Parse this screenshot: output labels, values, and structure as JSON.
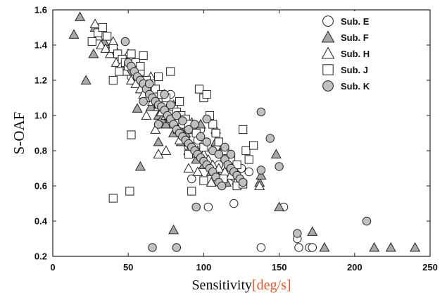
{
  "chart_data": {
    "type": "scatter",
    "xlabel": "Sensitivity",
    "xlabel_unit": "[deg/s]",
    "ylabel": "S-OAF",
    "xlim": [
      0,
      250
    ],
    "ylim": [
      0.2,
      1.6
    ],
    "xticks": [
      "0",
      "50",
      "100",
      "150",
      "200",
      "250"
    ],
    "yticks": [
      "0.2",
      "0.4",
      "0.6",
      "0.8",
      "1.0",
      "1.2",
      "1.4",
      "1.6"
    ],
    "grid": false,
    "legend_position": "top-right",
    "series": [
      {
        "name": "Sub. E",
        "marker": "circle",
        "fill": "#ffffff",
        "points": [
          [
            52,
            1.22
          ],
          [
            58,
            1.2
          ],
          [
            65,
            1.1
          ],
          [
            70,
            1.05
          ],
          [
            75,
            1.0
          ],
          [
            80,
            0.95
          ],
          [
            85,
            0.9
          ],
          [
            88,
            0.88
          ],
          [
            90,
            0.82
          ],
          [
            95,
            0.78
          ],
          [
            100,
            0.75
          ],
          [
            105,
            0.7
          ],
          [
            110,
            0.72
          ],
          [
            115,
            0.68
          ],
          [
            120,
            0.65
          ],
          [
            125,
            0.7
          ],
          [
            120,
            0.5
          ],
          [
            92,
            0.64
          ],
          [
            103,
            0.48
          ],
          [
            138,
            0.25
          ],
          [
            153,
            0.48
          ],
          [
            162,
            0.3
          ],
          [
            163,
            0.25
          ],
          [
            170,
            0.25
          ],
          [
            172,
            0.25
          ],
          [
            60,
            1.15
          ],
          [
            68,
            1.08
          ],
          [
            78,
            1.12
          ],
          [
            96,
            0.86
          ],
          [
            108,
            0.82
          ],
          [
            112,
            0.62
          ],
          [
            118,
            0.72
          ],
          [
            130,
            0.68
          ],
          [
            86,
            0.95
          ],
          [
            98,
            0.92
          ]
        ]
      },
      {
        "name": "Sub. F",
        "marker": "triangle",
        "fill": "#a8a8a8",
        "points": [
          [
            18,
            1.56
          ],
          [
            14,
            1.46
          ],
          [
            28,
            1.5
          ],
          [
            34,
            1.42
          ],
          [
            40,
            1.4
          ],
          [
            45,
            1.3
          ],
          [
            50,
            1.25
          ],
          [
            55,
            1.2
          ],
          [
            60,
            1.15
          ],
          [
            65,
            1.05
          ],
          [
            70,
            1.0
          ],
          [
            75,
            0.95
          ],
          [
            80,
            0.9
          ],
          [
            85,
            0.85
          ],
          [
            90,
            0.8
          ],
          [
            95,
            0.75
          ],
          [
            100,
            0.72
          ],
          [
            105,
            0.68
          ],
          [
            110,
            0.65
          ],
          [
            115,
            0.62
          ],
          [
            22,
            1.2
          ],
          [
            27,
            1.35
          ],
          [
            56,
            1.04
          ],
          [
            58,
            0.71
          ],
          [
            70,
            0.85
          ],
          [
            80,
            0.35
          ],
          [
            137,
            0.62
          ],
          [
            148,
            0.78
          ],
          [
            150,
            0.48
          ],
          [
            172,
            0.34
          ],
          [
            180,
            0.25
          ],
          [
            213,
            0.25
          ],
          [
            224,
            0.25
          ],
          [
            240,
            0.25
          ],
          [
            88,
            0.9
          ],
          [
            93,
            0.8
          ],
          [
            98,
            0.95
          ],
          [
            108,
            0.85
          ],
          [
            118,
            0.72
          ],
          [
            138,
            0.66
          ],
          [
            62,
            1.1
          ],
          [
            72,
            0.98
          ],
          [
            38,
            1.38
          ],
          [
            48,
            1.32
          ]
        ]
      },
      {
        "name": "Sub. H",
        "marker": "triangle",
        "fill": "#ffffff",
        "points": [
          [
            28,
            1.52
          ],
          [
            30,
            1.45
          ],
          [
            32,
            1.4
          ],
          [
            35,
            1.38
          ],
          [
            38,
            1.35
          ],
          [
            42,
            1.3
          ],
          [
            45,
            1.28
          ],
          [
            48,
            1.25
          ],
          [
            52,
            1.2
          ],
          [
            55,
            1.18
          ],
          [
            58,
            1.15
          ],
          [
            60,
            1.12
          ],
          [
            63,
            1.1
          ],
          [
            66,
            1.08
          ],
          [
            70,
            1.05
          ],
          [
            72,
            1.02
          ],
          [
            75,
            1.0
          ],
          [
            78,
            0.98
          ],
          [
            80,
            0.95
          ],
          [
            83,
            0.92
          ],
          [
            86,
            0.9
          ],
          [
            90,
            0.85
          ],
          [
            93,
            0.82
          ],
          [
            96,
            0.8
          ],
          [
            100,
            0.78
          ],
          [
            103,
            0.75
          ],
          [
            106,
            0.72
          ],
          [
            110,
            0.7
          ],
          [
            114,
            0.68
          ],
          [
            118,
            0.66
          ],
          [
            122,
            0.63
          ],
          [
            70,
            0.78
          ],
          [
            75,
            0.8
          ],
          [
            90,
            0.7
          ],
          [
            96,
            0.68
          ],
          [
            105,
            0.62
          ],
          [
            137,
            0.6
          ],
          [
            62,
            1.0
          ],
          [
            68,
            0.92
          ],
          [
            84,
            0.86
          ],
          [
            92,
            0.96
          ],
          [
            108,
            0.92
          ],
          [
            112,
            0.8
          ],
          [
            40,
            1.42
          ],
          [
            50,
            1.35
          ],
          [
            56,
            1.28
          ],
          [
            65,
            1.22
          ],
          [
            74,
            1.12
          ],
          [
            80,
            1.06
          ]
        ]
      },
      {
        "name": "Sub. J",
        "marker": "square",
        "fill": "#ffffff",
        "points": [
          [
            26,
            1.42
          ],
          [
            30,
            1.47
          ],
          [
            33,
            1.5
          ],
          [
            36,
            1.45
          ],
          [
            40,
            1.38
          ],
          [
            43,
            1.35
          ],
          [
            46,
            1.32
          ],
          [
            48,
            1.3
          ],
          [
            50,
            1.28
          ],
          [
            52,
            1.35
          ],
          [
            55,
            1.3
          ],
          [
            58,
            1.25
          ],
          [
            60,
            1.34
          ],
          [
            62,
            1.2
          ],
          [
            65,
            1.18
          ],
          [
            68,
            1.15
          ],
          [
            72,
            1.12
          ],
          [
            75,
            1.1
          ],
          [
            78,
            1.25
          ],
          [
            80,
            1.05
          ],
          [
            82,
            1.02
          ],
          [
            85,
            1.0
          ],
          [
            88,
            0.98
          ],
          [
            90,
            0.95
          ],
          [
            92,
            0.92
          ],
          [
            95,
            0.9
          ],
          [
            97,
            1.15
          ],
          [
            100,
            1.1
          ],
          [
            102,
            1.12
          ],
          [
            104,
            1.0
          ],
          [
            106,
            0.95
          ],
          [
            108,
            0.9
          ],
          [
            110,
            0.85
          ],
          [
            114,
            0.8
          ],
          [
            118,
            0.75
          ],
          [
            122,
            0.72
          ],
          [
            126,
            0.92
          ],
          [
            128,
            0.8
          ],
          [
            130,
            0.75
          ],
          [
            133,
            0.83
          ],
          [
            40,
            1.2
          ],
          [
            52,
            0.89
          ],
          [
            51,
            0.57
          ],
          [
            40,
            0.53
          ],
          [
            92,
            0.57
          ],
          [
            100,
            0.63
          ],
          [
            113,
            0.64
          ],
          [
            122,
            0.6
          ],
          [
            126,
            0.61
          ],
          [
            44,
            1.25
          ],
          [
            58,
            1.28
          ],
          [
            70,
            1.22
          ],
          [
            84,
            1.08
          ],
          [
            90,
            0.78
          ],
          [
            100,
            0.82
          ]
        ]
      },
      {
        "name": "Sub. K",
        "marker": "circle",
        "fill": "#c0c0c0",
        "points": [
          [
            48,
            1.42
          ],
          [
            50,
            1.3
          ],
          [
            52,
            1.28
          ],
          [
            54,
            1.25
          ],
          [
            56,
            1.22
          ],
          [
            58,
            1.2
          ],
          [
            60,
            1.18
          ],
          [
            62,
            1.15
          ],
          [
            64,
            1.12
          ],
          [
            66,
            1.1
          ],
          [
            68,
            1.08
          ],
          [
            70,
            1.06
          ],
          [
            72,
            1.05
          ],
          [
            74,
            1.03
          ],
          [
            76,
            1.0
          ],
          [
            78,
            0.98
          ],
          [
            80,
            0.95
          ],
          [
            82,
            0.92
          ],
          [
            84,
            0.9
          ],
          [
            86,
            0.88
          ],
          [
            88,
            0.86
          ],
          [
            90,
            0.84
          ],
          [
            92,
            0.82
          ],
          [
            94,
            0.8
          ],
          [
            96,
            0.78
          ],
          [
            98,
            0.76
          ],
          [
            100,
            0.74
          ],
          [
            102,
            0.72
          ],
          [
            104,
            0.7
          ],
          [
            106,
            0.68
          ],
          [
            108,
            0.65
          ],
          [
            110,
            0.62
          ],
          [
            112,
            0.6
          ],
          [
            114,
            0.75
          ],
          [
            116,
            0.72
          ],
          [
            118,
            0.7
          ],
          [
            120,
            0.68
          ],
          [
            122,
            0.66
          ],
          [
            124,
            0.64
          ],
          [
            126,
            0.62
          ],
          [
            138,
            1.02
          ],
          [
            144,
            0.87
          ],
          [
            150,
            0.71
          ],
          [
            138,
            0.69
          ],
          [
            95,
            0.48
          ],
          [
            66,
            0.25
          ],
          [
            82,
            0.25
          ],
          [
            162,
            0.33
          ],
          [
            208,
            0.4
          ],
          [
            60,
            1.08
          ],
          [
            64,
            1.18
          ],
          [
            70,
            0.95
          ],
          [
            74,
            1.12
          ],
          [
            78,
            1.06
          ],
          [
            82,
            1.0
          ],
          [
            86,
            0.97
          ],
          [
            90,
            0.92
          ],
          [
            94,
            0.95
          ],
          [
            98,
            0.88
          ],
          [
            102,
            0.85
          ],
          [
            106,
            0.8
          ],
          [
            110,
            0.78
          ],
          [
            114,
            0.82
          ],
          [
            118,
            0.78
          ],
          [
            102,
            0.98
          ]
        ]
      }
    ]
  }
}
